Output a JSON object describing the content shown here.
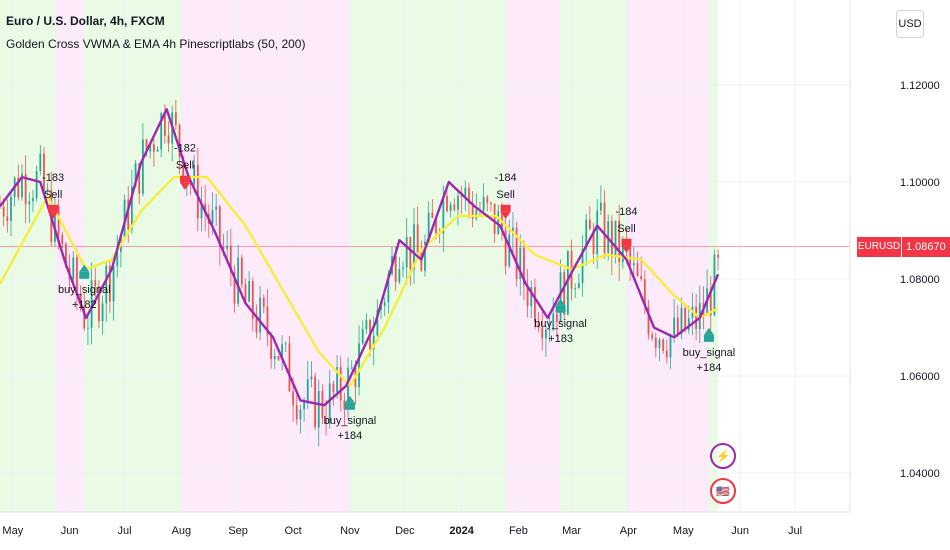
{
  "header": {
    "title": "Euro / U.S. Dollar, 4h, FXCM",
    "indicator": "Golden Cross VWMA & EMA 4h Pinescriptlabs (50, 200)"
  },
  "currency_button": "USD",
  "price_tag": {
    "symbol": "EURUSD",
    "value": "1.08670"
  },
  "colors": {
    "bull_bg": "#e9fbe5",
    "bear_bg": "#fdeafa",
    "vwma": "#9c27b0",
    "ema": "#f5ef3b",
    "candle_up": "#26a69a",
    "candle_down": "#ef5350",
    "sell": "#f23645",
    "buy": "#26a69a",
    "price_line": "#f23645"
  },
  "icons": {
    "flash": "flash-icon",
    "flag": "flag-icon"
  },
  "chart_data": {
    "type": "line",
    "title": "Euro / U.S. Dollar, 4h, FXCM",
    "ylim": [
      1.032,
      1.1375
    ],
    "xlim": [
      "2023-04-24",
      "2024-07-31"
    ],
    "y_ticks": [
      "1.12000",
      "1.10000",
      "1.08000",
      "1.06000",
      "1.04000"
    ],
    "y_tick_values": [
      1.12,
      1.1,
      1.08,
      1.06,
      1.04
    ],
    "x_ticks": [
      "May",
      "Jun",
      "Jul",
      "Aug",
      "Sep",
      "Oct",
      "Nov",
      "Dec",
      "2024",
      "Feb",
      "Mar",
      "Apr",
      "May",
      "Jun",
      "Jul"
    ],
    "x_tick_dates": [
      "2023-05-01",
      "2023-06-01",
      "2023-07-01",
      "2023-08-01",
      "2023-09-01",
      "2023-10-01",
      "2023-11-01",
      "2023-12-01",
      "2024-01-01",
      "2024-02-01",
      "2024-03-01",
      "2024-04-01",
      "2024-05-01",
      "2024-06-01",
      "2024-07-01"
    ],
    "last_price": 1.0867,
    "background_regimes": [
      {
        "start": "2023-04-24",
        "end": "2023-05-24",
        "trend": "bull"
      },
      {
        "start": "2023-05-24",
        "end": "2023-06-09",
        "trend": "bear"
      },
      {
        "start": "2023-06-09",
        "end": "2023-08-01",
        "trend": "bull"
      },
      {
        "start": "2023-08-01",
        "end": "2023-11-01",
        "trend": "bear"
      },
      {
        "start": "2023-11-01",
        "end": "2024-01-25",
        "trend": "bull"
      },
      {
        "start": "2024-01-25",
        "end": "2024-02-24",
        "trend": "bear"
      },
      {
        "start": "2024-02-24",
        "end": "2024-03-31",
        "trend": "bull"
      },
      {
        "start": "2024-03-31",
        "end": "2024-05-15",
        "trend": "bear"
      },
      {
        "start": "2024-05-15",
        "end": "2024-05-20",
        "trend": "bull"
      }
    ],
    "series": [
      {
        "name": "VWMA",
        "x": [
          "2023-04-24",
          "2023-05-06",
          "2023-05-16",
          "2023-05-30",
          "2023-06-10",
          "2023-06-24",
          "2023-07-10",
          "2023-07-24",
          "2023-08-05",
          "2023-08-19",
          "2023-09-05",
          "2023-09-20",
          "2023-10-05",
          "2023-10-18",
          "2023-10-30",
          "2023-11-15",
          "2023-11-28",
          "2023-12-10",
          "2023-12-25",
          "2024-01-08",
          "2024-01-22",
          "2024-02-05",
          "2024-02-17",
          "2024-03-02",
          "2024-03-15",
          "2024-03-31",
          "2024-04-15",
          "2024-04-26",
          "2024-05-10",
          "2024-05-20"
        ],
        "y": [
          1.095,
          1.101,
          1.1,
          1.083,
          1.072,
          1.082,
          1.104,
          1.115,
          1.101,
          1.09,
          1.075,
          1.068,
          1.055,
          1.054,
          1.058,
          1.071,
          1.088,
          1.084,
          1.1,
          1.095,
          1.091,
          1.079,
          1.072,
          1.082,
          1.091,
          1.084,
          1.07,
          1.068,
          1.072,
          1.081
        ]
      },
      {
        "name": "EMA",
        "x": [
          "2023-04-24",
          "2023-05-20",
          "2023-06-10",
          "2023-06-24",
          "2023-07-10",
          "2023-07-28",
          "2023-08-15",
          "2023-09-05",
          "2023-09-25",
          "2023-10-15",
          "2023-11-01",
          "2023-11-20",
          "2023-12-10",
          "2023-12-30",
          "2024-01-20",
          "2024-02-10",
          "2024-03-01",
          "2024-03-20",
          "2024-04-08",
          "2024-04-25",
          "2024-05-10",
          "2024-05-20"
        ],
        "y": [
          1.079,
          1.097,
          1.082,
          1.084,
          1.094,
          1.101,
          1.101,
          1.091,
          1.078,
          1.065,
          1.058,
          1.07,
          1.086,
          1.093,
          1.093,
          1.085,
          1.082,
          1.085,
          1.084,
          1.077,
          1.072,
          1.074
        ]
      }
    ],
    "annotations": [
      {
        "kind": "sell",
        "date": "2023-05-23",
        "price": 1.092,
        "labels": [
          "-183",
          "Sell"
        ]
      },
      {
        "kind": "buy",
        "date": "2023-06-09",
        "price": 1.085,
        "labels": [
          "buy_signal",
          "+182"
        ]
      },
      {
        "kind": "sell",
        "date": "2023-08-03",
        "price": 1.098,
        "labels": [
          "-182",
          "Sell"
        ]
      },
      {
        "kind": "buy",
        "date": "2023-11-01",
        "price": 1.058,
        "labels": [
          "buy_signal",
          "+184"
        ]
      },
      {
        "kind": "sell",
        "date": "2024-01-25",
        "price": 1.092,
        "labels": [
          "-184",
          "Sell"
        ]
      },
      {
        "kind": "buy",
        "date": "2024-02-24",
        "price": 1.078,
        "labels": [
          "buy_signal",
          "+183"
        ]
      },
      {
        "kind": "sell",
        "date": "2024-03-31",
        "price": 1.085,
        "labels": [
          "-184",
          "Sell"
        ]
      },
      {
        "kind": "buy",
        "date": "2024-05-15",
        "price": 1.072,
        "labels": [
          "buy_signal",
          "+184"
        ]
      }
    ]
  }
}
